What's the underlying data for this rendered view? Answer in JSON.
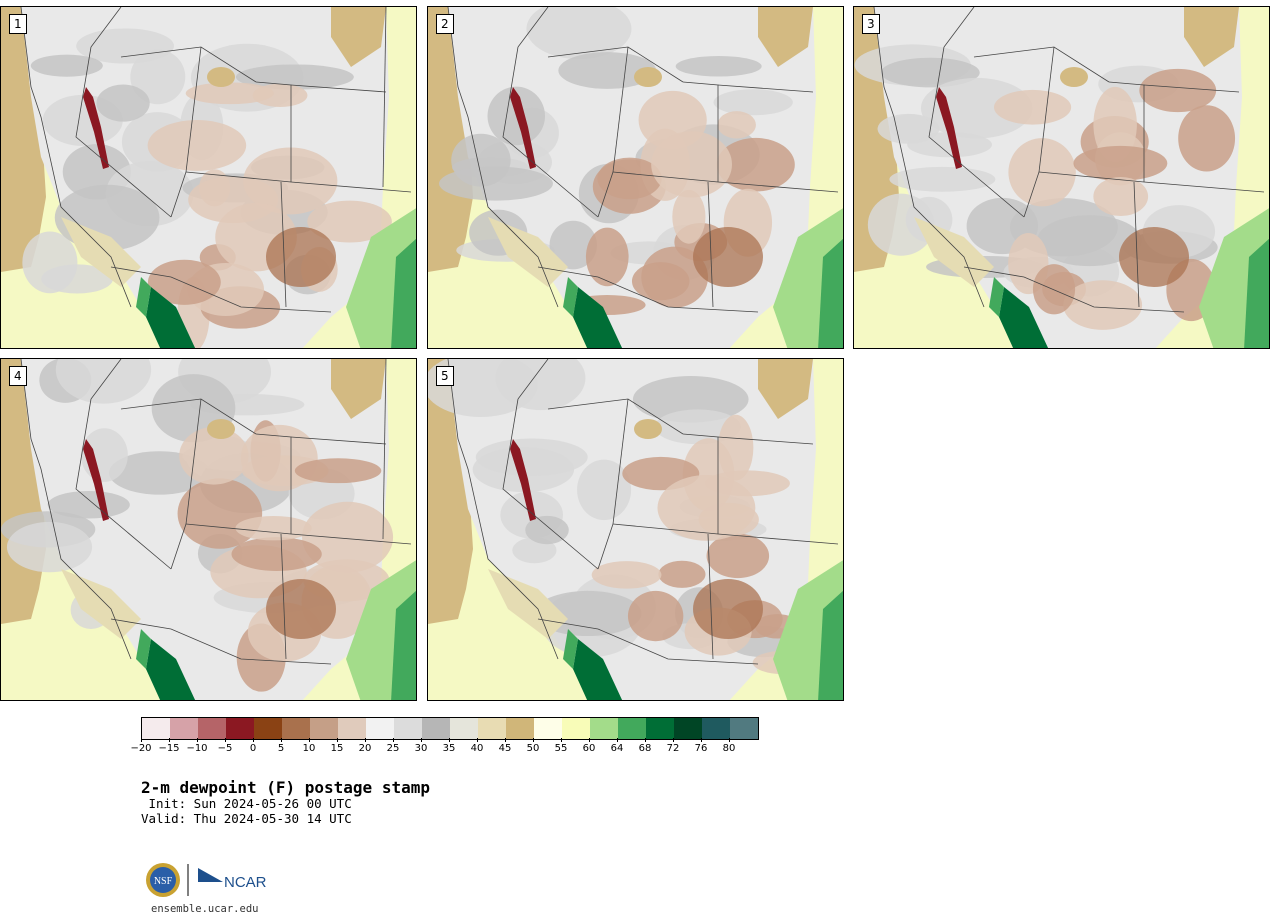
{
  "panels": [
    {
      "label": "1"
    },
    {
      "label": "2"
    },
    {
      "label": "3"
    },
    {
      "label": "4"
    },
    {
      "label": "5"
    }
  ],
  "colorbar": {
    "colors": [
      "#f5ebed",
      "#d6a2a8",
      "#b56468",
      "#8b1822",
      "#8a4214",
      "#a9714d",
      "#c59f87",
      "#e0cbbc",
      "#f2f2f2",
      "#dcdcdc",
      "#b6b6b6",
      "#e5e5db",
      "#e8dcb3",
      "#d0b679",
      "#fefee8",
      "#f8fcb8",
      "#a3dc8a",
      "#42a95c",
      "#006e36",
      "#004525",
      "#1f5a5f",
      "#517a80"
    ],
    "tick_labels": [
      "−20",
      "−15",
      "−10",
      "−5",
      "0",
      "5",
      "10",
      "15",
      "20",
      "25",
      "30",
      "35",
      "40",
      "45",
      "50",
      "55",
      "60",
      "64",
      "68",
      "72",
      "76",
      "80"
    ]
  },
  "title": "2-m dewpoint (F) postage stamp",
  "init": " Init: Sun 2024-05-26 00 UTC",
  "valid": "Valid: Thu 2024-05-30 14 UTC",
  "logos": {
    "nsf": "NSF",
    "ncar": "NCAR"
  },
  "site": "ensemble.ucar.edu"
}
